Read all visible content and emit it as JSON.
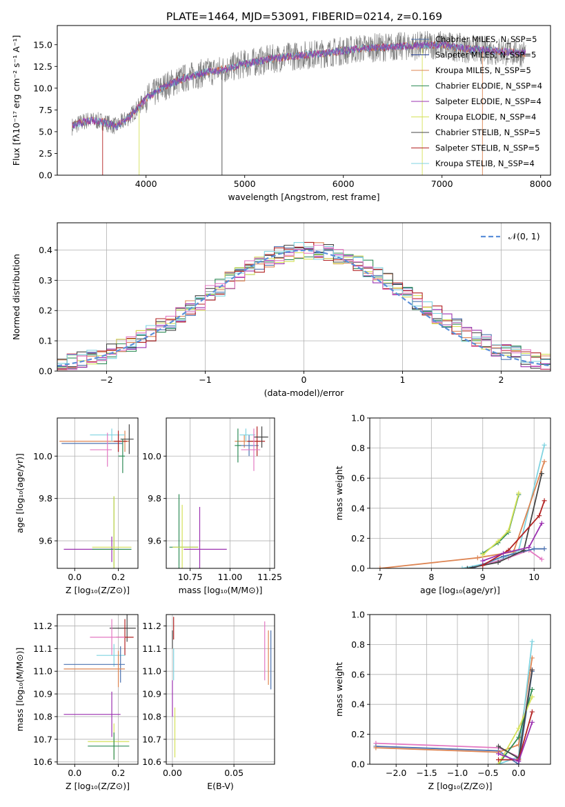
{
  "title": "PLATE=1464, MJD=53091, FIBERID=0214, z=0.169",
  "chart_data": [
    {
      "type": "line",
      "panel": "spectrum",
      "xlabel": "wavelength [Angstrom, rest frame]",
      "ylabel": "Flux [fλ10⁻¹⁷ erg cm⁻² s⁻¹ A⁻¹]",
      "xlim": [
        3100,
        8100
      ],
      "ylim": [
        0,
        17.2
      ],
      "xticks": [
        4000,
        5000,
        6000,
        7000,
        8000
      ],
      "yticks": [
        0.0,
        2.5,
        5.0,
        7.5,
        10.0,
        12.5,
        15.0
      ],
      "grid": false,
      "legend_position": "top-right",
      "data_color": "#808080",
      "legend": [
        {
          "name": "Chabrier MILES, N_SSP=5",
          "color": "#4c72b0"
        },
        {
          "name": "Salpeter MILES, N_SSP=5",
          "color": "#1f3a93"
        },
        {
          "name": "Kroupa MILES, N_SSP=5",
          "color": "#dd8452"
        },
        {
          "name": "Chabrier ELODIE, N_SSP=4",
          "color": "#2e8b57"
        },
        {
          "name": "Salpeter ELODIE, N_SSP=4",
          "color": "#9b30b0"
        },
        {
          "name": "Kroupa ELODIE, N_SSP=4",
          "color": "#d4e157"
        },
        {
          "name": "Chabrier STELIB, N_SSP=5",
          "color": "#444444"
        },
        {
          "name": "Salpeter STELIB, N_SSP=5",
          "color": "#b22222"
        },
        {
          "name": "Kroupa STELIB, N_SSP=4",
          "color": "#7fd3e0"
        }
      ],
      "model_trend": {
        "x": [
          3250,
          3400,
          3550,
          3700,
          3850,
          4000,
          4200,
          4400,
          4600,
          4800,
          5000,
          5200,
          5400,
          5600,
          5800,
          6000,
          6200,
          6400,
          6600,
          6800,
          7000,
          7200,
          7400,
          7600,
          7850
        ],
        "y": [
          5.6,
          6.3,
          6.2,
          5.6,
          6.9,
          8.8,
          10.3,
          11.2,
          11.8,
          12.2,
          12.8,
          13.2,
          13.6,
          13.8,
          14.0,
          14.3,
          14.6,
          14.7,
          14.8,
          14.9,
          15.0,
          14.6,
          14.4,
          14.2,
          14.0
        ]
      }
    },
    {
      "type": "histogram",
      "panel": "residuals",
      "xlabel": "(data-model)/error",
      "ylabel": "Normed distribution",
      "xlim": [
        -2.5,
        2.5
      ],
      "ylim": [
        0,
        0.49
      ],
      "xticks": [
        -2,
        -1,
        0,
        1,
        2
      ],
      "yticks": [
        0.0,
        0.1,
        0.2,
        0.3,
        0.4
      ],
      "grid": true,
      "legend_position": "top-right",
      "reference_curve": {
        "label": "𝒩(0, 1)",
        "color": "#5b8fd9",
        "style": "dashed"
      },
      "bin_width": 0.1,
      "histogram_colors": [
        "#4c72b0",
        "#dd8452",
        "#2e8b57",
        "#9b30b0",
        "#d4e157",
        "#444444",
        "#b22222",
        "#7fd3e0",
        "#e377c2"
      ]
    },
    {
      "type": "scatter",
      "panel": "age-vs-metallicity",
      "xlabel": "Z [log₁₀(Z/Z⊙)]",
      "ylabel": "age  [log₁₀(age/yr)]",
      "xlim": [
        -0.08,
        0.29
      ],
      "ylim": [
        9.47,
        10.18
      ],
      "xticks": [
        0.0,
        0.2
      ],
      "yticks": [
        9.6,
        9.8,
        10.0
      ],
      "grid": true,
      "points": [
        {
          "x": 0.23,
          "y": 10.07,
          "xerr": [
            0.3,
            0.02
          ],
          "yerr": 0.05,
          "color": "#dd8452"
        },
        {
          "x": 0.2,
          "y": 10.06,
          "xerr": [
            0.26,
            0.02
          ],
          "yerr": 0.04,
          "color": "#4c72b0"
        },
        {
          "x": 0.17,
          "y": 10.1,
          "xerr": [
            0.1,
            0.06
          ],
          "yerr": 0.03,
          "color": "#7fd3e0"
        },
        {
          "x": 0.2,
          "y": 10.07,
          "xerr": [
            0.02,
            0.04
          ],
          "yerr": 0.05,
          "color": "#b22222"
        },
        {
          "x": 0.25,
          "y": 10.08,
          "xerr": [
            0.04,
            0.02
          ],
          "yerr": 0.07,
          "color": "#444444"
        },
        {
          "x": 0.15,
          "y": 10.03,
          "xerr": [
            0.08,
            0.02
          ],
          "yerr": 0.08,
          "color": "#e377c2"
        },
        {
          "x": 0.22,
          "y": 10.0,
          "xerr": [
            0.02,
            0.01
          ],
          "yerr": 0.08,
          "color": "#2e8b57"
        },
        {
          "x": 0.17,
          "y": 9.56,
          "xerr": [
            0.22,
            0.03
          ],
          "yerr": 0.06,
          "color": "#9b30b0"
        },
        {
          "x": 0.18,
          "y": 9.56,
          "xerr": [
            0.1,
            0.08
          ],
          "yerr": 0.25,
          "color": "#2e8b57"
        },
        {
          "x": 0.18,
          "y": 9.57,
          "xerr": [
            0.1,
            0.08
          ],
          "yerr": 0.24,
          "color": "#d4e157"
        }
      ]
    },
    {
      "type": "scatter",
      "panel": "age-vs-mass",
      "xlabel": "mass [log₁₀(M/M⊙)]",
      "ylabel": "",
      "xlim": [
        10.6,
        11.28
      ],
      "ylim": [
        9.47,
        10.18
      ],
      "xticks": [
        10.75,
        11.0,
        11.25
      ],
      "yticks": [
        9.6,
        9.8,
        10.0
      ],
      "grid": true,
      "points": [
        {
          "x": 11.09,
          "y": 10.07,
          "xerr": [
            0.06,
            0.1
          ],
          "yerr": 0.03,
          "color": "#dd8452"
        },
        {
          "x": 11.12,
          "y": 10.05,
          "xerr": [
            0.07,
            0.06
          ],
          "yerr": 0.05,
          "color": "#4c72b0"
        },
        {
          "x": 11.1,
          "y": 10.1,
          "xerr": [
            0.04,
            0.06
          ],
          "yerr": 0.03,
          "color": "#7fd3e0"
        },
        {
          "x": 11.17,
          "y": 10.07,
          "xerr": [
            0.06,
            0.05
          ],
          "yerr": 0.07,
          "color": "#b22222"
        },
        {
          "x": 11.2,
          "y": 10.09,
          "xerr": [
            0.05,
            0.04
          ],
          "yerr": 0.05,
          "color": "#444444"
        },
        {
          "x": 11.15,
          "y": 10.03,
          "xerr": [
            0.08,
            0.04
          ],
          "yerr": 0.1,
          "color": "#e377c2"
        },
        {
          "x": 11.05,
          "y": 10.05,
          "xerr": [
            0.02,
            0.02
          ],
          "yerr": 0.08,
          "color": "#2e8b57"
        },
        {
          "x": 10.81,
          "y": 9.56,
          "xerr": [
            0.1,
            0.17
          ],
          "yerr": 0.2,
          "color": "#9b30b0"
        },
        {
          "x": 10.68,
          "y": 9.57,
          "xerr": [
            0.06,
            0.12
          ],
          "yerr": 0.25,
          "color": "#2e8b57"
        },
        {
          "x": 10.7,
          "y": 9.57,
          "xerr": [
            0.06,
            0.1
          ],
          "yerr": 0.2,
          "color": "#d4e157"
        }
      ]
    },
    {
      "type": "line",
      "panel": "mass-weight-vs-age",
      "xlabel": "age  [log₁₀(age/yr)]",
      "ylabel": "mass weight",
      "xlim": [
        6.8,
        10.32
      ],
      "ylim": [
        0,
        1.0
      ],
      "xticks": [
        7,
        8,
        9,
        10
      ],
      "yticks": [
        0.0,
        0.2,
        0.4,
        0.6,
        0.8,
        1.0
      ],
      "grid": true,
      "series": [
        {
          "color": "#7fd3e0",
          "x": [
            8.6,
            9.3,
            9.7,
            10.2
          ],
          "y": [
            0.0,
            0.05,
            0.12,
            0.82
          ]
        },
        {
          "color": "#dd8452",
          "x": [
            7.0,
            8.9,
            9.6,
            10.2
          ],
          "y": [
            0.0,
            0.07,
            0.11,
            0.71
          ]
        },
        {
          "color": "#e377c2",
          "x": [
            9.0,
            9.5,
            9.9,
            10.15
          ],
          "y": [
            0.02,
            0.07,
            0.12,
            0.06
          ]
        },
        {
          "color": "#4c72b0",
          "x": [
            8.8,
            9.4,
            10.0,
            10.2
          ],
          "y": [
            0.0,
            0.08,
            0.13,
            0.13
          ]
        },
        {
          "color": "#444444",
          "x": [
            8.7,
            9.3,
            9.8,
            10.15
          ],
          "y": [
            0.0,
            0.04,
            0.12,
            0.63
          ]
        },
        {
          "color": "#b22222",
          "x": [
            9.0,
            9.5,
            10.1,
            10.2
          ],
          "y": [
            0.02,
            0.12,
            0.35,
            0.45
          ]
        },
        {
          "color": "#2e8b57",
          "x": [
            9.0,
            9.3,
            9.5,
            9.7
          ],
          "y": [
            0.1,
            0.17,
            0.24,
            0.49
          ]
        },
        {
          "color": "#d4e157",
          "x": [
            9.0,
            9.3,
            9.5,
            9.7
          ],
          "y": [
            0.09,
            0.18,
            0.25,
            0.5
          ]
        },
        {
          "color": "#9b30b0",
          "x": [
            9.0,
            9.4,
            9.9,
            10.15
          ],
          "y": [
            0.05,
            0.1,
            0.14,
            0.3
          ]
        }
      ]
    },
    {
      "type": "scatter",
      "panel": "mass-vs-metallicity",
      "xlabel": "Z [log₁₀(Z/Z⊙)]",
      "ylabel": "mass [log₁₀(M/M⊙)]",
      "xlim": [
        -0.08,
        0.29
      ],
      "ylim": [
        10.59,
        11.25
      ],
      "xticks": [
        0.0,
        0.2
      ],
      "yticks": [
        10.6,
        10.7,
        10.8,
        10.9,
        11.0,
        11.1,
        11.2
      ],
      "grid": true,
      "points": [
        {
          "x": 0.24,
          "y": 11.19,
          "xerr": [
            0.08,
            0.04
          ],
          "yerr": 0.06,
          "color": "#444444"
        },
        {
          "x": 0.23,
          "y": 11.15,
          "xerr": [
            0.04,
            0.04
          ],
          "yerr": 0.08,
          "color": "#b22222"
        },
        {
          "x": 0.17,
          "y": 11.15,
          "xerr": [
            0.1,
            0.06
          ],
          "yerr": 0.08,
          "color": "#e377c2"
        },
        {
          "x": 0.18,
          "y": 11.07,
          "xerr": [
            0.08,
            0.05
          ],
          "yerr": 0.05,
          "color": "#7fd3e0"
        },
        {
          "x": 0.21,
          "y": 11.03,
          "xerr": [
            0.26,
            0.02
          ],
          "yerr": 0.08,
          "color": "#4c72b0"
        },
        {
          "x": 0.2,
          "y": 11.01,
          "xerr": [
            0.25,
            0.03
          ],
          "yerr": 0.08,
          "color": "#dd8452"
        },
        {
          "x": 0.17,
          "y": 10.81,
          "xerr": [
            0.22,
            0.04
          ],
          "yerr": 0.1,
          "color": "#9b30b0"
        },
        {
          "x": 0.18,
          "y": 10.69,
          "xerr": [
            0.12,
            0.07
          ],
          "yerr": 0.08,
          "color": "#d4e157"
        },
        {
          "x": 0.18,
          "y": 10.67,
          "xerr": [
            0.12,
            0.07
          ],
          "yerr": 0.06,
          "color": "#2e8b57"
        }
      ]
    },
    {
      "type": "scatter",
      "panel": "mass-vs-ebv",
      "xlabel": "E(B-V)",
      "ylabel": "",
      "xlim": [
        -0.005,
        0.083
      ],
      "ylim": [
        10.59,
        11.25
      ],
      "xticks": [
        0.0,
        0.05
      ],
      "yticks": [
        10.6,
        10.7,
        10.8,
        10.9,
        11.0,
        11.1,
        11.2
      ],
      "grid": true,
      "points": [
        {
          "x": 0.001,
          "y": 11.19,
          "yerr": 0.05,
          "color": "#b22222"
        },
        {
          "x": 0.0,
          "y": 11.14,
          "yerr": 0.04,
          "color": "#444444"
        },
        {
          "x": 0.001,
          "y": 11.03,
          "yerr": 0.07,
          "color": "#7fd3e0"
        },
        {
          "x": 0.0,
          "y": 10.88,
          "yerr": 0.08,
          "color": "#9b30b0"
        },
        {
          "x": 0.002,
          "y": 10.73,
          "yerr": 0.11,
          "color": "#d4e157"
        },
        {
          "x": 0.075,
          "y": 11.09,
          "yerr": 0.13,
          "color": "#e377c2"
        },
        {
          "x": 0.078,
          "y": 11.06,
          "yerr": 0.12,
          "color": "#dd8452"
        },
        {
          "x": 0.08,
          "y": 11.05,
          "yerr": 0.13,
          "color": "#4c72b0"
        }
      ]
    },
    {
      "type": "line",
      "panel": "mass-weight-vs-metallicity",
      "xlabel": "Z [log₁₀(Z/Z⊙)]",
      "ylabel": "mass weight",
      "xlim": [
        -2.43,
        0.52
      ],
      "ylim": [
        0,
        1.0
      ],
      "xticks": [
        -2.0,
        -1.5,
        -1.0,
        -0.5,
        0.0
      ],
      "yticks": [
        0.0,
        0.2,
        0.4,
        0.6,
        0.8,
        1.0
      ],
      "grid": true,
      "series": [
        {
          "color": "#e377c2",
          "x": [
            -2.33,
            -0.33,
            0.0,
            0.22
          ],
          "y": [
            0.14,
            0.11,
            0.05,
            0.63
          ]
        },
        {
          "color": "#4c72b0",
          "x": [
            -2.33,
            -0.33,
            0.0,
            0.22
          ],
          "y": [
            0.12,
            0.09,
            0.0,
            0.62
          ]
        },
        {
          "color": "#dd8452",
          "x": [
            -2.33,
            -0.33,
            0.0,
            0.22
          ],
          "y": [
            0.11,
            0.08,
            0.13,
            0.71
          ]
        },
        {
          "color": "#7fd3e0",
          "x": [
            -0.33,
            0.0,
            0.22
          ],
          "y": [
            0.0,
            0.05,
            0.82
          ]
        },
        {
          "color": "#2e8b57",
          "x": [
            -0.33,
            0.0,
            0.22
          ],
          "y": [
            0.0,
            0.18,
            0.5
          ]
        },
        {
          "color": "#d4e157",
          "x": [
            -0.33,
            0.0,
            0.22
          ],
          "y": [
            0.0,
            0.24,
            0.45
          ]
        },
        {
          "color": "#444444",
          "x": [
            -0.33,
            0.0,
            0.22
          ],
          "y": [
            0.12,
            0.04,
            0.63
          ]
        },
        {
          "color": "#b22222",
          "x": [
            -0.33,
            0.0,
            0.22
          ],
          "y": [
            0.03,
            0.03,
            0.35
          ]
        },
        {
          "color": "#9b30b0",
          "x": [
            -0.33,
            0.0,
            0.22
          ],
          "y": [
            0.07,
            0.02,
            0.28
          ]
        }
      ]
    }
  ]
}
